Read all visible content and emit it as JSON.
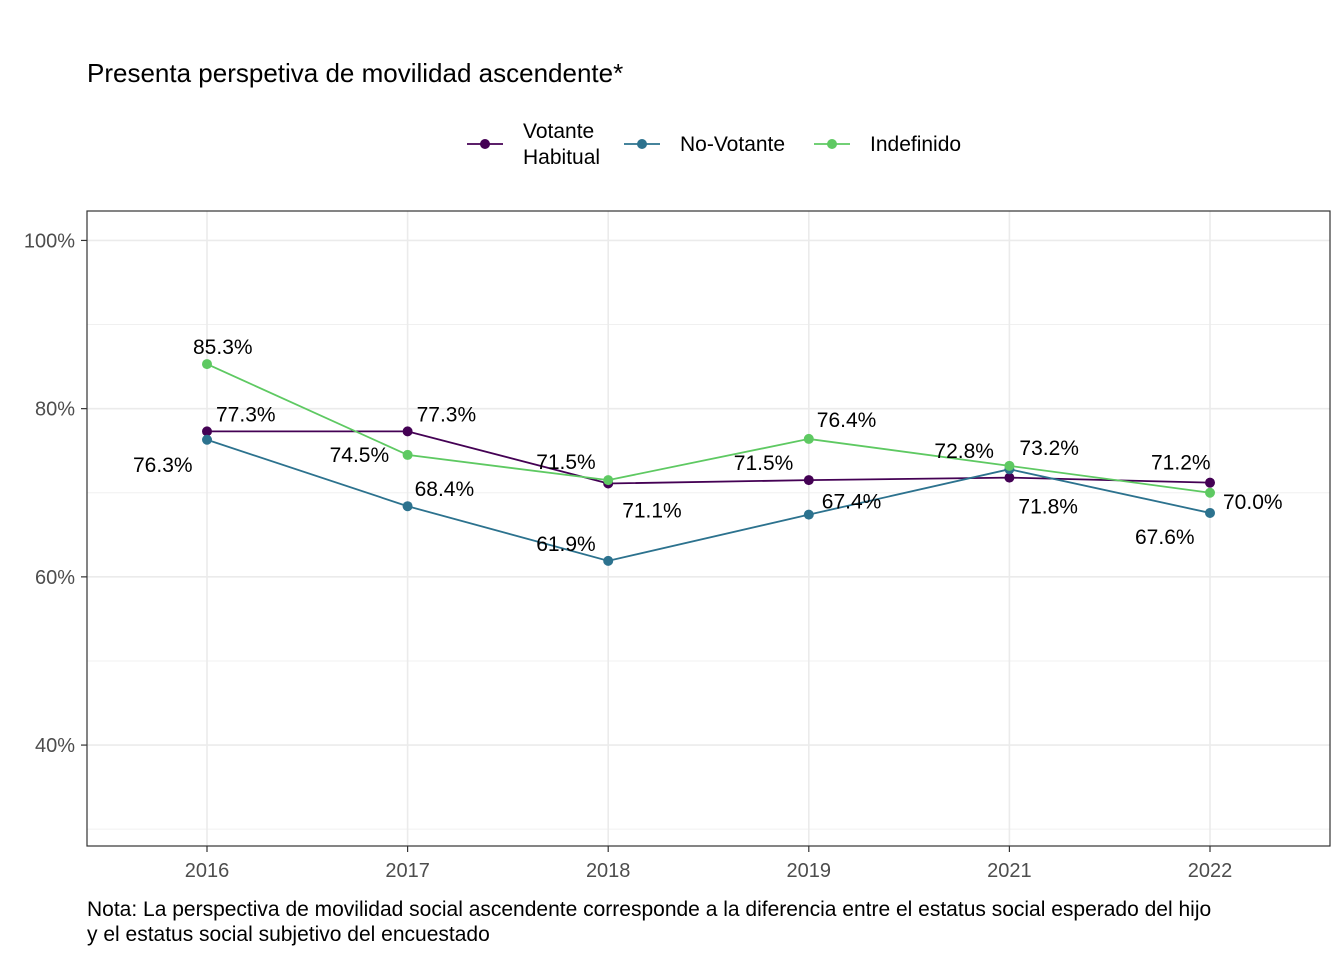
{
  "chart_data": {
    "type": "line",
    "title": "Presenta perspetiva de movilidad ascendente*",
    "xlabel": "",
    "ylabel": "",
    "categories": [
      "2016",
      "2017",
      "2018",
      "2019",
      "2021",
      "2022"
    ],
    "ylim": [
      0.28,
      1.035
    ],
    "y_ticks": [
      {
        "value": 0.4,
        "label": "40%"
      },
      {
        "value": 0.6,
        "label": "60%"
      },
      {
        "value": 0.8,
        "label": "80%"
      },
      {
        "value": 1.0,
        "label": "100%"
      }
    ],
    "grid": true,
    "legend_position": "top",
    "series": [
      {
        "name": "Votante Habitual",
        "legend_lines": [
          "Votante",
          "Habitual"
        ],
        "color": "#440154",
        "values": [
          0.773,
          0.773,
          0.711,
          0.715,
          0.718,
          0.712
        ],
        "labels": [
          "77.3%",
          "77.3%",
          "71.1%",
          "71.5%",
          "71.8%",
          "71.2%"
        ]
      },
      {
        "name": "No-Votante",
        "legend_lines": [
          "No-Votante"
        ],
        "color": "#2C728E",
        "values": [
          0.763,
          0.684,
          0.619,
          0.674,
          0.728,
          0.676
        ],
        "labels": [
          "76.3%",
          "68.4%",
          "61.9%",
          "67.4%",
          "72.8%",
          "67.6%"
        ]
      },
      {
        "name": "Indefinido",
        "legend_lines": [
          "Indefinido"
        ],
        "color": "#5EC962",
        "values": [
          0.853,
          0.745,
          0.715,
          0.764,
          0.732,
          0.7
        ],
        "labels": [
          "85.3%",
          "74.5%",
          "71.5%",
          "76.4%",
          "73.2%",
          "70.0%"
        ]
      }
    ],
    "note": [
      "Nota: La perspectiva de movilidad social ascendente corresponde a la diferencia entre el estatus social esperado del hijo",
      "y el estatus social subjetivo del encuestado"
    ]
  }
}
